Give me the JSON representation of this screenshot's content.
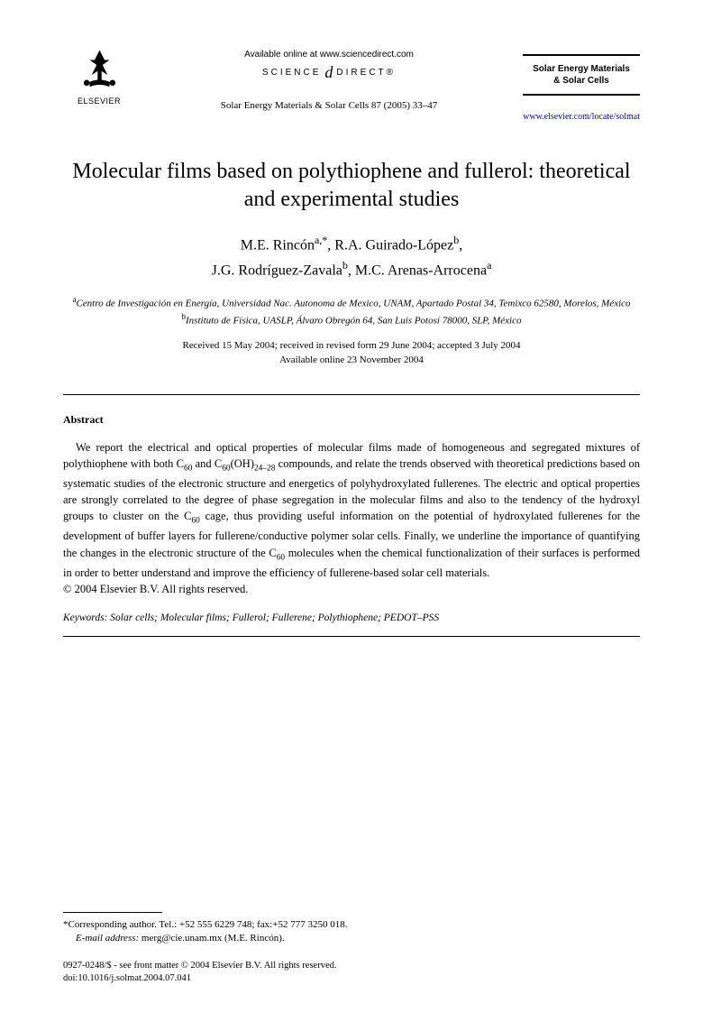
{
  "header": {
    "publisher": "ELSEVIER",
    "available_online": "Available online at www.sciencedirect.com",
    "science": "SCIENCE",
    "direct": "DIRECT®",
    "journal_ref": "Solar Energy Materials & Solar Cells 87 (2005) 33–47",
    "journal_box_line1": "Solar Energy Materials",
    "journal_box_line2": "& Solar Cells",
    "locate_url": "www.elsevier.com/locate/solmat"
  },
  "title": "Molecular films based on polythiophene and fullerol: theoretical and experimental studies",
  "authors_line1_html": "M.E. Rincón<sup>a,*</sup>, R.A. Guirado-López<sup>b</sup>,",
  "authors_line2_html": "J.G. Rodríguez-Zavala<sup>b</sup>, M.C. Arenas-Arrocena<sup>a</sup>",
  "affiliations": {
    "a": "Centro de Investigación en Energía, Universidad Nac. Autonoma de Mexico, UNAM, Apartado Postal 34, Temixco 62580, Morelos, México",
    "b": "Instituto de Física, UASLP, Álvaro Obregón 64, San Luis Potosí 78000, SLP, México"
  },
  "dates": {
    "received": "Received 15 May 2004; received in revised form 29 June 2004; accepted 3 July 2004",
    "available": "Available online 23 November 2004"
  },
  "abstract": {
    "heading": "Abstract",
    "body_html": "We report the electrical and optical properties of molecular films made of homogeneous and segregated mixtures of polythiophene with both C<sub>60</sub> and C<sub>60</sub>(OH)<sub>24–28</sub> compounds, and relate the trends observed with theoretical predictions based on systematic studies of the electronic structure and energetics of polyhydroxylated fullerenes. The electric and optical properties are strongly correlated to the degree of phase segregation in the molecular films and also to the tendency of the hydroxyl groups to cluster on the C<sub>60</sub> cage, thus providing useful information on the potential of hydroxylated fullerenes for the development of buffer layers for fullerene/conductive polymer solar cells. Finally, we underline the importance of quantifying the changes in the electronic structure of the C<sub>60</sub> molecules when the chemical functionalization of their surfaces is performed in order to better understand and improve the efficiency of fullerene-based solar cell materials.",
    "copyright": "© 2004 Elsevier B.V. All rights reserved."
  },
  "keywords": {
    "label": "Keywords:",
    "list": "Solar cells; Molecular films; Fullerol; Fullerene; Polythiophene; PEDOT–PSS"
  },
  "footer": {
    "corresponding": "*Corresponding author. Tel.: +52 555 6229 748; fax:+52 777 3250 018.",
    "email_label": "E-mail address:",
    "email": "merg@cie.unam.mx (M.E. Rincón).",
    "issn": "0927-0248/$ - see front matter © 2004 Elsevier B.V. All rights reserved.",
    "doi": "doi:10.1016/j.solmat.2004.07.041"
  }
}
